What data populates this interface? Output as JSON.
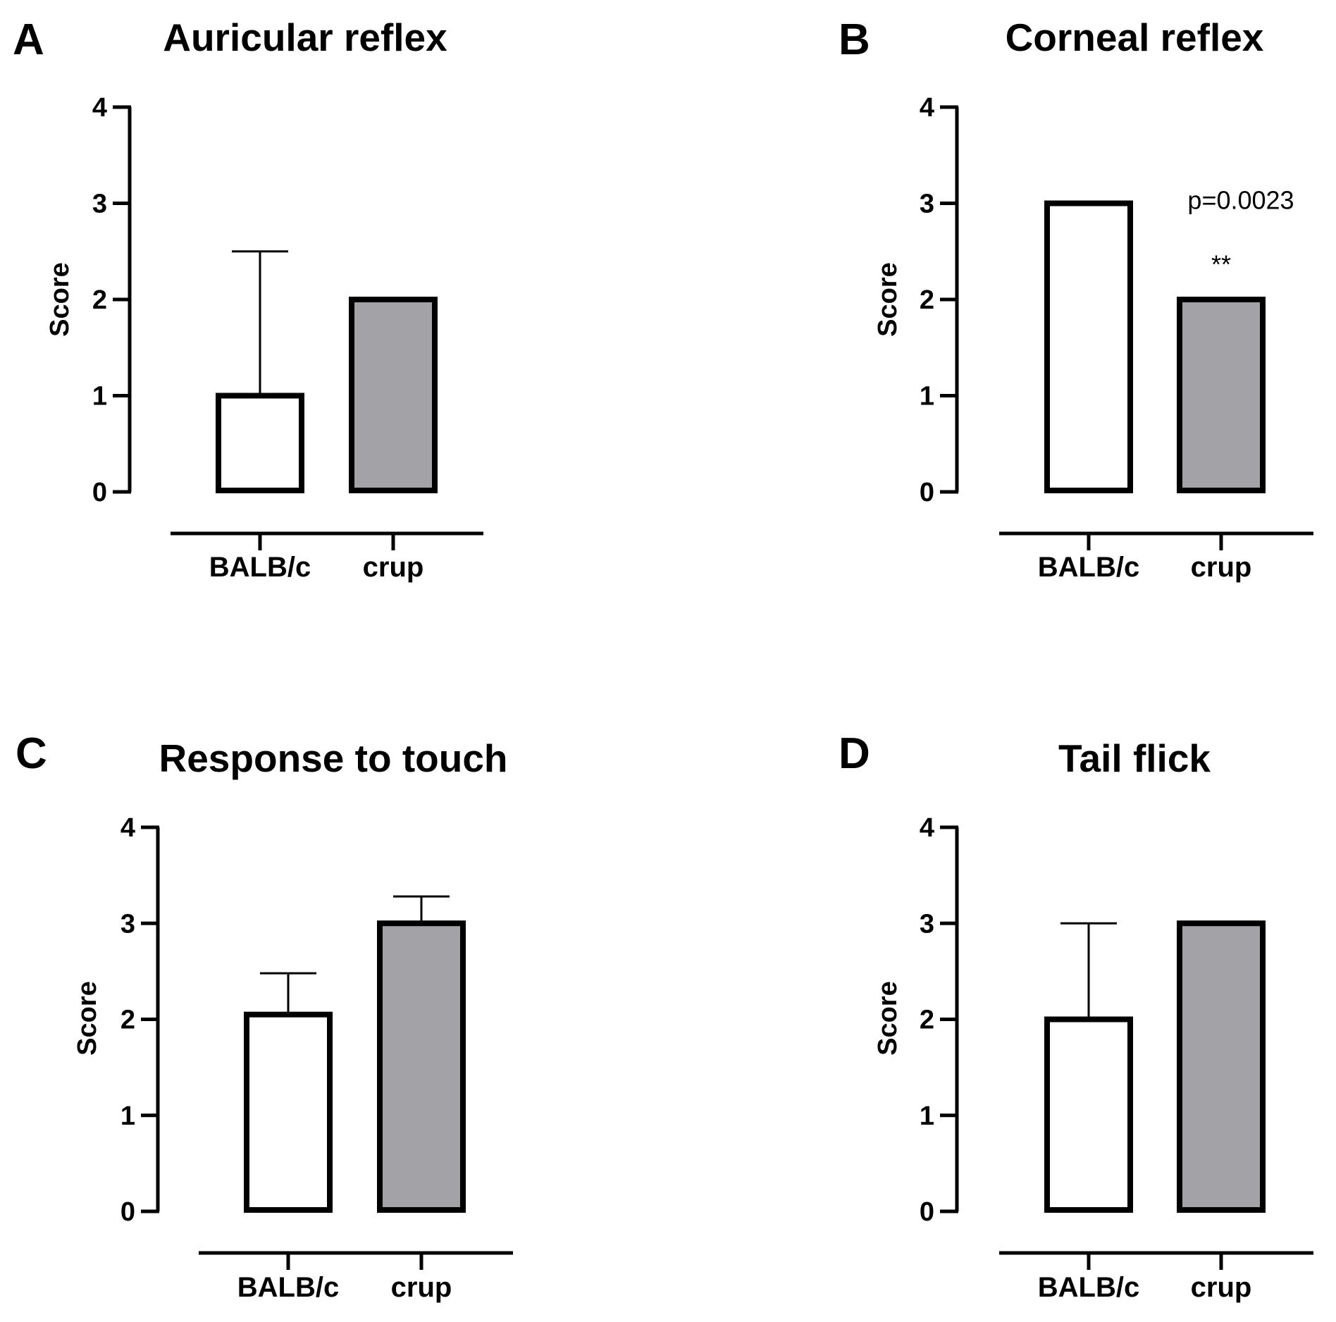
{
  "colors": {
    "balb_fill": "#ffffff",
    "crup_fill": "#a3a2a7",
    "stroke": "#000000"
  },
  "chart_data": [
    {
      "panel": "A",
      "type": "bar",
      "title": "Auricular reflex",
      "ylabel": "Score",
      "ylim": [
        0,
        4
      ],
      "yticks": [
        0,
        1,
        2,
        3,
        4
      ],
      "categories": [
        "BALB/c",
        "crup"
      ],
      "values": [
        1,
        2
      ],
      "error_upper": [
        2.5,
        null
      ],
      "annotations": []
    },
    {
      "panel": "B",
      "type": "bar",
      "title": "Corneal reflex",
      "ylabel": "Score",
      "ylim": [
        0,
        4
      ],
      "yticks": [
        0,
        1,
        2,
        3,
        4
      ],
      "categories": [
        "BALB/c",
        "crup"
      ],
      "values": [
        3,
        2
      ],
      "error_upper": [
        null,
        null
      ],
      "annotations": [
        {
          "text": "p=0.0023",
          "category": 1,
          "kind": "p"
        },
        {
          "text": "**",
          "category": 1,
          "kind": "stars"
        }
      ]
    },
    {
      "panel": "C",
      "type": "bar",
      "title": "Response to touch",
      "ylabel": "Score",
      "ylim": [
        0,
        4
      ],
      "yticks": [
        0,
        1,
        2,
        3,
        4
      ],
      "categories": [
        "BALB/c",
        "crup"
      ],
      "values": [
        2.05,
        3
      ],
      "error_upper": [
        2.48,
        3.28
      ],
      "annotations": []
    },
    {
      "panel": "D",
      "type": "bar",
      "title": "Tail flick",
      "ylabel": "Score",
      "ylim": [
        0,
        4
      ],
      "yticks": [
        0,
        1,
        2,
        3,
        4
      ],
      "categories": [
        "BALB/c",
        "crup"
      ],
      "values": [
        2,
        3
      ],
      "error_upper": [
        3,
        null
      ],
      "annotations": []
    }
  ]
}
